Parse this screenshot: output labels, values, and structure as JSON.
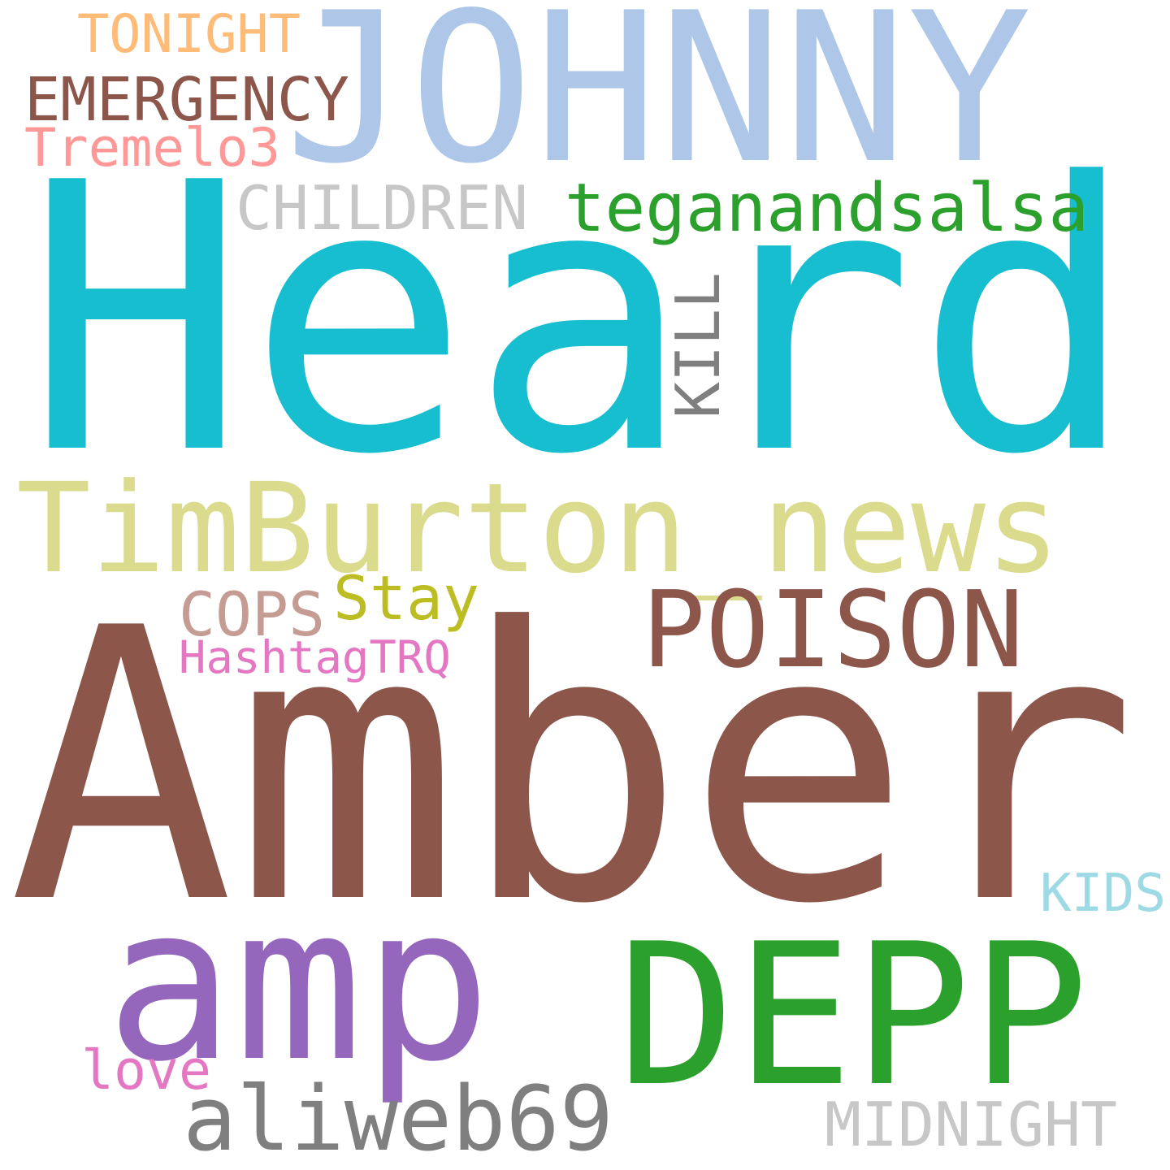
{
  "words": [
    {
      "key": "heard",
      "text": "Heard",
      "color": "#17becf"
    },
    {
      "key": "amber",
      "text": "Amber",
      "color": "#8c564b"
    },
    {
      "key": "johnny",
      "text": "JOHNNY",
      "color": "#aec7e8"
    },
    {
      "key": "depp",
      "text": "DEPP",
      "color": "#2ca02c"
    },
    {
      "key": "amp",
      "text": "amp",
      "color": "#9467bd"
    },
    {
      "key": "timburton_news",
      "text": "TimBurton_news",
      "color": "#dbdb8d"
    },
    {
      "key": "poison",
      "text": "POISON",
      "color": "#8c564b"
    },
    {
      "key": "aliweb69",
      "text": "aliweb69",
      "color": "#7f7f7f"
    },
    {
      "key": "teganandsalsa",
      "text": "teganandsalsa",
      "color": "#2ca02c"
    },
    {
      "key": "children",
      "text": "CHILDREN",
      "color": "#c7c7c7"
    },
    {
      "key": "emergency",
      "text": "EMERGENCY",
      "color": "#8c564b"
    },
    {
      "key": "tonight",
      "text": "TONIGHT",
      "color": "#ffbb78"
    },
    {
      "key": "tremelo3",
      "text": "Tremelo3",
      "color": "#ff9896"
    },
    {
      "key": "kill",
      "text": "KILL",
      "color": "#7f7f7f"
    },
    {
      "key": "cops",
      "text": "COPS",
      "color": "#c49c94"
    },
    {
      "key": "stay",
      "text": "Stay",
      "color": "#bcbd22"
    },
    {
      "key": "hashtagtrq",
      "text": "HashtagTRQ",
      "color": "#e377c2"
    },
    {
      "key": "midnight",
      "text": "MIDNIGHT",
      "color": "#c7c7c7"
    },
    {
      "key": "kids",
      "text": "KIDS",
      "color": "#9edae5"
    },
    {
      "key": "love",
      "text": "love",
      "color": "#e377c2"
    }
  ]
}
